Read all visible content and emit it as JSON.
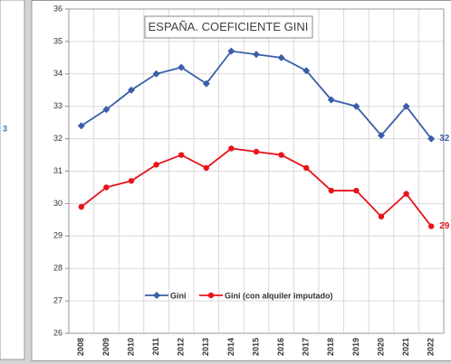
{
  "left_panel": {
    "text": "3"
  },
  "chart_data": {
    "type": "line",
    "title": "ESPAÑA. COEFICIENTE GINI",
    "categories": [
      "2008",
      "2009",
      "2010",
      "2011",
      "2012",
      "2013",
      "2014",
      "2015",
      "2016",
      "2017",
      "2018",
      "2019",
      "2020",
      "2021",
      "2022"
    ],
    "series": [
      {
        "name": "Gini",
        "color": "#3a5ea8",
        "marker": "diamond",
        "values": [
          32.4,
          32.9,
          33.5,
          34.0,
          34.2,
          33.7,
          34.7,
          34.6,
          34.5,
          34.1,
          33.2,
          33.0,
          32.1,
          33.0,
          32.0
        ],
        "value_labels": [
          null,
          null,
          null,
          null,
          null,
          null,
          null,
          null,
          null,
          null,
          null,
          null,
          null,
          null,
          "32"
        ]
      },
      {
        "name": "Gini (con alquiler imputado)",
        "color": "#e8141a",
        "marker": "circle",
        "values": [
          29.9,
          30.5,
          30.7,
          31.2,
          31.5,
          31.1,
          31.7,
          31.6,
          31.5,
          31.1,
          30.4,
          30.4,
          29.6,
          30.3,
          29.3
        ],
        "value_labels": [
          null,
          null,
          null,
          null,
          null,
          null,
          null,
          null,
          null,
          null,
          null,
          null,
          null,
          null,
          "29"
        ]
      }
    ],
    "ylim": [
      26,
      36
    ],
    "yticks": [
      26,
      27,
      28,
      29,
      30,
      31,
      32,
      33,
      34,
      35,
      36
    ],
    "grid": true,
    "legend": "bottom"
  }
}
